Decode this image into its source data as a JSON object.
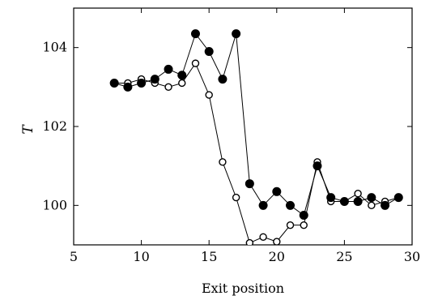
{
  "chart_data": {
    "type": "line",
    "title": "",
    "xlabel": "Exit position",
    "ylabel": "T",
    "xlim": [
      5,
      30
    ],
    "ylim": [
      99.0,
      105.0
    ],
    "xticks": [
      "5",
      "10",
      "15",
      "20",
      "25",
      "30"
    ],
    "yticks": [
      "100",
      "102",
      "104"
    ],
    "grid": false,
    "legend": false,
    "series": [
      {
        "marker": "filled-circle",
        "color": "#000000",
        "x": [
          8,
          9,
          10,
          11,
          12,
          13,
          14,
          15,
          16,
          17,
          18,
          19,
          20,
          21,
          22,
          23,
          24,
          25,
          26,
          27,
          28,
          29
        ],
        "y": [
          103.1,
          103.0,
          103.1,
          103.2,
          103.45,
          103.3,
          104.35,
          103.9,
          103.2,
          104.35,
          100.55,
          100.0,
          100.35,
          100.0,
          99.75,
          101.0,
          100.2,
          100.1,
          100.1,
          100.2,
          100.0,
          100.2
        ]
      },
      {
        "marker": "open-circle",
        "color": "#000000",
        "x": [
          8,
          9,
          10,
          11,
          12,
          13,
          14,
          15,
          16,
          17,
          18,
          19,
          20,
          21,
          22,
          23,
          24,
          25,
          26,
          27,
          28,
          29
        ],
        "y": [
          103.1,
          103.1,
          103.2,
          103.1,
          103.0,
          103.1,
          103.6,
          102.8,
          101.1,
          100.2,
          99.05,
          99.2,
          99.08,
          99.5,
          99.5,
          101.1,
          100.1,
          100.1,
          100.3,
          100.0,
          100.1,
          100.2
        ]
      }
    ]
  }
}
